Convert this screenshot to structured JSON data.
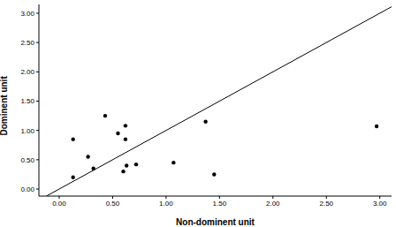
{
  "chart_data": {
    "type": "scatter",
    "x_label": "Non-dominent unit",
    "y_label": "Dominent unit",
    "xlim": [
      -0.19,
      3.11
    ],
    "ylim": [
      -0.12,
      3.15
    ],
    "xticks": [
      {
        "value": 0,
        "label": "0.00"
      },
      {
        "value": 0.5,
        "label": "0.50"
      },
      {
        "value": 1,
        "label": "1.00"
      },
      {
        "value": 1.5,
        "label": "1.50"
      },
      {
        "value": 2,
        "label": "2.00"
      },
      {
        "value": 2.5,
        "label": "2.50"
      },
      {
        "value": 3,
        "label": "3.00"
      }
    ],
    "yticks": [
      {
        "value": 0,
        "label": "0.00"
      },
      {
        "value": 0.5,
        "label": "0.50"
      },
      {
        "value": 1,
        "label": "1.00"
      },
      {
        "value": 1.5,
        "label": "1.50"
      },
      {
        "value": 2,
        "label": "2.00"
      },
      {
        "value": 2.5,
        "label": "2.50"
      },
      {
        "value": 3,
        "label": "3.00"
      }
    ],
    "grid": false,
    "series": [
      {
        "type": "scatter",
        "color": "#000000",
        "marker": "circle",
        "x": [
          0.13,
          0.13,
          0.27,
          0.32,
          0.43,
          0.55,
          0.62,
          0.62,
          0.6,
          0.63,
          0.72,
          1.07,
          1.37,
          1.45,
          2.97
        ],
        "values": [
          0.85,
          0.2,
          0.55,
          0.35,
          1.25,
          0.95,
          1.08,
          0.85,
          0.3,
          0.4,
          0.42,
          0.45,
          1.15,
          0.25,
          1.07
        ]
      },
      {
        "type": "line",
        "color": "#000000",
        "line_style": "solid",
        "x": [
          -0.12,
          3.11
        ],
        "values": [
          -0.12,
          3.11
        ]
      }
    ]
  }
}
